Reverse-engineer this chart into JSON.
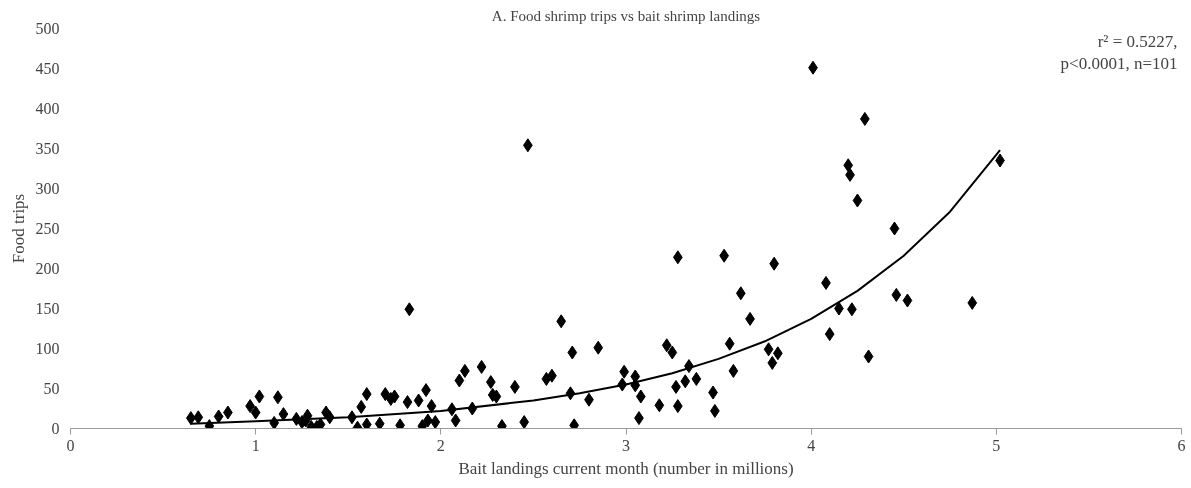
{
  "chart_data": {
    "type": "scatter",
    "title": "A. Food shrimp trips vs bait shrimp landings",
    "xlabel": "Bait landings current month (number in millions)",
    "ylabel": "Food trips",
    "xlim": [
      0,
      6
    ],
    "xticks": [
      0,
      1,
      2,
      3,
      4,
      5,
      6
    ],
    "ylim": [
      0,
      500
    ],
    "yticks": [
      0,
      50,
      100,
      150,
      200,
      250,
      300,
      350,
      400,
      450,
      500
    ],
    "grid": false,
    "annotations": [
      "r² = 0.5227,",
      "p<0.0001, n=101"
    ],
    "series": [
      {
        "marker": "diamond",
        "color": "#000000",
        "x": [
          0.65,
          0.69,
          0.75,
          0.8,
          0.85,
          0.97,
          1.0,
          1.02,
          1.1,
          1.12,
          1.15,
          1.22,
          1.25,
          1.27,
          1.28,
          1.3,
          1.33,
          1.35,
          1.38,
          1.4,
          1.52,
          1.55,
          1.57,
          1.6,
          1.6,
          1.67,
          1.7,
          1.73,
          1.75,
          1.78,
          1.82,
          1.83,
          1.88,
          1.9,
          1.92,
          1.93,
          1.95,
          1.97,
          2.06,
          2.08,
          2.1,
          2.13,
          2.17,
          2.22,
          2.27,
          2.28,
          2.3,
          2.33,
          2.4,
          2.45,
          2.47,
          2.57,
          2.6,
          2.65,
          2.7,
          2.71,
          2.72,
          2.8,
          2.85,
          2.98,
          2.99,
          3.05,
          3.05,
          3.07,
          3.08,
          3.18,
          3.22,
          3.25,
          3.27,
          3.28,
          3.28,
          3.32,
          3.34,
          3.38,
          3.47,
          3.48,
          3.53,
          3.56,
          3.58,
          3.62,
          3.67,
          3.77,
          3.79,
          3.8,
          3.82,
          4.01,
          4.08,
          4.1,
          4.15,
          4.2,
          4.21,
          4.22,
          4.25,
          4.29,
          4.31,
          4.45,
          4.46,
          4.52,
          4.87,
          5.02
        ],
        "values": [
          13,
          14,
          3,
          15,
          20,
          28,
          20,
          40,
          7,
          39,
          18,
          12,
          8,
          10,
          16,
          2,
          2,
          5,
          20,
          14,
          14,
          1,
          27,
          43,
          5,
          6,
          43,
          37,
          40,
          4,
          33,
          149,
          35,
          3,
          48,
          10,
          28,
          8,
          24,
          10,
          60,
          72,
          25,
          77,
          58,
          42,
          40,
          3,
          52,
          8,
          354,
          62,
          66,
          134,
          44,
          95,
          4,
          36,
          101,
          55,
          71,
          65,
          54,
          13,
          40,
          29,
          104,
          95,
          52,
          214,
          28,
          59,
          78,
          62,
          45,
          22,
          216,
          106,
          72,
          169,
          137,
          99,
          82,
          206,
          94,
          451,
          182,
          118,
          150,
          329,
          317,
          149,
          285,
          387,
          90,
          250,
          167,
          160,
          157,
          335
        ]
      },
      {
        "type": "line",
        "line_style": "solid",
        "color": "#000000",
        "x": [
          0.65,
          1,
          1.5,
          2,
          2.5,
          2.75,
          3,
          3.25,
          3.5,
          3.75,
          4,
          4.25,
          4.5,
          4.75,
          5.02
        ],
        "values": [
          6,
          9,
          14,
          22,
          35,
          44,
          55,
          69,
          87,
          109,
          137,
          172,
          216,
          271,
          348
        ]
      }
    ]
  }
}
